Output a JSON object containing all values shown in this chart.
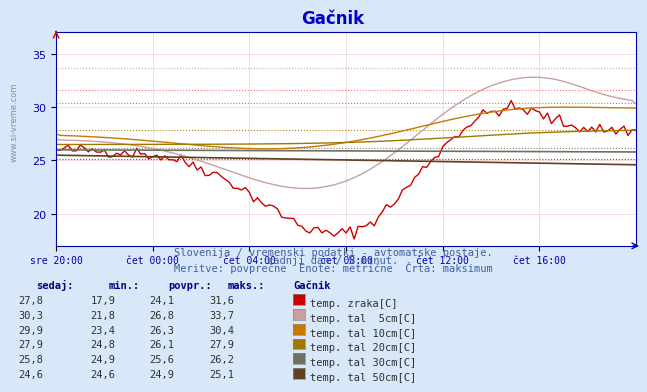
{
  "title": "Gačnik",
  "background_color": "#d8e8f8",
  "plot_bg_color": "#ffffff",
  "grid_color": "#e0c0c0",
  "title_color": "#0000cc",
  "axis_color": "#0000aa",
  "watermark": "www.si-vreme.com",
  "subtitle1": "Slovenija / vremenski podatki - avtomatske postaje.",
  "subtitle2": "zadnji dan / 5 minut.",
  "subtitle3": "Meritve: povprečne  Enote: metrične  Črta: maksimum",
  "x_labels": [
    "sre 20:00",
    "čet 00:00",
    "čet 04:00",
    "čet 08:00",
    "čet 12:00",
    "čet 16:00"
  ],
  "x_ticks": [
    0,
    24,
    48,
    72,
    96,
    120
  ],
  "x_max": 144,
  "ylim": [
    17,
    37
  ],
  "yticks": [
    20,
    25,
    30,
    35
  ],
  "series": [
    {
      "name": "temp. zraka[C]",
      "color": "#cc0000",
      "max_color": "#ff6666",
      "sedaj": 27.8,
      "min": 17.9,
      "povpr": 24.1,
      "maks": 31.6,
      "max_line": 31.6
    },
    {
      "name": "temp. tal  5cm[C]",
      "color": "#c8a0a0",
      "max_color": "#c8a0a0",
      "sedaj": 30.3,
      "min": 21.8,
      "povpr": 26.8,
      "maks": 33.7,
      "max_line": 33.7
    },
    {
      "name": "temp. tal 10cm[C]",
      "color": "#c87800",
      "max_color": "#c87800",
      "sedaj": 29.9,
      "min": 23.4,
      "povpr": 26.3,
      "maks": 30.4,
      "max_line": 30.4
    },
    {
      "name": "temp. tal 20cm[C]",
      "color": "#a07800",
      "max_color": "#a07800",
      "sedaj": 27.9,
      "min": 24.8,
      "povpr": 26.1,
      "maks": 27.9,
      "max_line": 27.9
    },
    {
      "name": "temp. tal 30cm[C]",
      "color": "#707060",
      "max_color": "#707060",
      "sedaj": 25.8,
      "min": 24.9,
      "povpr": 25.6,
      "maks": 26.2,
      "max_line": 26.2
    },
    {
      "name": "temp. tal 50cm[C]",
      "color": "#604020",
      "max_color": "#604020",
      "sedaj": 24.6,
      "min": 24.6,
      "povpr": 24.9,
      "maks": 25.1,
      "max_line": 25.1
    }
  ],
  "legend_header_color": "#000080",
  "legend_label_color": "#000080",
  "legend_value_color": "#404040",
  "legend_colors": [
    "#cc0000",
    "#c8a0a0",
    "#c87800",
    "#a07800",
    "#707060",
    "#604020"
  ],
  "legend_sedaj": [
    "27,8",
    "30,3",
    "29,9",
    "27,9",
    "25,8",
    "24,6"
  ],
  "legend_min": [
    "17,9",
    "21,8",
    "23,4",
    "24,8",
    "24,9",
    "24,6"
  ],
  "legend_povpr": [
    "24,1",
    "26,8",
    "26,3",
    "26,1",
    "25,6",
    "24,9"
  ],
  "legend_maks": [
    "31,6",
    "33,7",
    "30,4",
    "27,9",
    "26,2",
    "25,1"
  ],
  "legend_names": [
    "temp. zraka[C]",
    "temp. tal  5cm[C]",
    "temp. tal 10cm[C]",
    "temp. tal 20cm[C]",
    "temp. tal 30cm[C]",
    "temp. tal 50cm[C]"
  ]
}
